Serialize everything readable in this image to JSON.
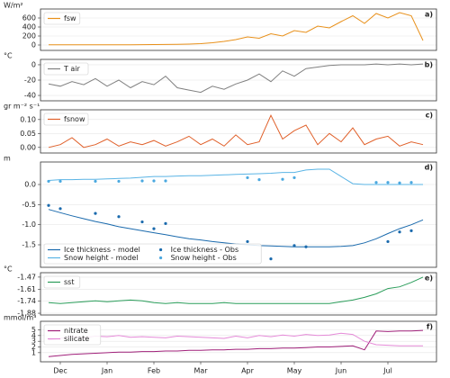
{
  "chart_data": [
    {
      "type": "line",
      "ylabel": "W/m²",
      "panel_label": "a)",
      "ylim": [
        -120,
        800
      ],
      "yticks": [
        0,
        200,
        400,
        600
      ],
      "grid": true,
      "legend": "upper left",
      "series": [
        {
          "name": "fsw",
          "color": "#e8901a",
          "values": [
            5,
            5,
            5,
            5,
            5,
            5,
            5,
            5,
            8,
            10,
            12,
            15,
            20,
            30,
            50,
            80,
            120,
            180,
            150,
            250,
            200,
            320,
            280,
            420,
            380,
            520,
            650,
            480,
            700,
            600,
            720,
            650,
            100
          ]
        }
      ]
    },
    {
      "type": "line",
      "ylabel": "°C",
      "panel_label": "b)",
      "ylim": [
        -47,
        7
      ],
      "yticks": [
        0,
        -20,
        -40
      ],
      "grid": true,
      "legend": "upper left",
      "series": [
        {
          "name": "T air",
          "color": "#808080",
          "values": [
            -25,
            -28,
            -22,
            -26,
            -18,
            -28,
            -20,
            -30,
            -22,
            -26,
            -15,
            -30,
            -33,
            -36,
            -28,
            -32,
            -25,
            -20,
            -12,
            -22,
            -8,
            -15,
            -5,
            -3,
            -1,
            0,
            0,
            0,
            1,
            0,
            1,
            0,
            1
          ]
        }
      ]
    },
    {
      "type": "line",
      "ylabel": "gr m⁻² s⁻¹",
      "panel_label": "c)",
      "ylim": [
        -0.02,
        0.135
      ],
      "yticks": [
        {
          "value": 0.1,
          "label": "0.10"
        },
        0.05,
        {
          "value": 0,
          "label": "0.00"
        }
      ],
      "grid": true,
      "legend": "upper left",
      "series": [
        {
          "name": "fsnow",
          "color": "#e0602a",
          "values": [
            0,
            0.01,
            0.035,
            0,
            0.01,
            0.03,
            0.005,
            0.02,
            0.01,
            0.025,
            0.005,
            0.02,
            0.04,
            0.01,
            0.03,
            0.005,
            0.045,
            0.01,
            0.02,
            0.115,
            0.03,
            0.06,
            0.08,
            0.01,
            0.05,
            0.02,
            0.07,
            0.01,
            0.03,
            0.04,
            0.005,
            0.02,
            0.01
          ]
        }
      ]
    },
    {
      "type": "line",
      "ylabel": "m",
      "panel_label": "d)",
      "ylim": [
        -2.06,
        0.56
      ],
      "yticks": [
        {
          "value": 0,
          "label": "0.0"
        },
        -0.5,
        {
          "value": -1,
          "label": "-1.0"
        },
        -1.5
      ],
      "grid": true,
      "legend": "lower left",
      "series": [
        {
          "name": "Ice thickness - model",
          "color": "#1a6aad",
          "values": [
            -0.62,
            -0.7,
            -0.78,
            -0.85,
            -0.92,
            -0.98,
            -1.05,
            -1.1,
            -1.15,
            -1.2,
            -1.25,
            -1.3,
            -1.35,
            -1.38,
            -1.42,
            -1.45,
            -1.48,
            -1.5,
            -1.52,
            -1.53,
            -1.54,
            -1.55,
            -1.55,
            -1.55,
            -1.55,
            -1.54,
            -1.52,
            -1.45,
            -1.35,
            -1.22,
            -1.1,
            -1.0,
            -0.88
          ]
        },
        {
          "name": "Snow height - model",
          "color": "#5ab4e5",
          "values": [
            0.1,
            0.12,
            0.12,
            0.13,
            0.13,
            0.14,
            0.15,
            0.16,
            0.18,
            0.2,
            0.2,
            0.21,
            0.22,
            0.22,
            0.23,
            0.24,
            0.25,
            0.26,
            0.27,
            0.28,
            0.3,
            0.3,
            0.36,
            0.38,
            0.38,
            0.2,
            0.02,
            0,
            0,
            0,
            0,
            0,
            0
          ]
        },
        {
          "name": "Ice thickness - Obs",
          "color": "#1a6aad",
          "marker": true,
          "values": [
            -0.52,
            -0.6,
            null,
            null,
            -0.72,
            null,
            -0.8,
            null,
            -0.93,
            -1.1,
            -0.97,
            null,
            null,
            null,
            null,
            null,
            null,
            -1.42,
            null,
            -1.85,
            null,
            -1.52,
            -1.55,
            null,
            null,
            null,
            null,
            null,
            null,
            -1.42,
            -1.18,
            -1.15,
            null
          ]
        },
        {
          "name": "Snow height - Obs",
          "color": "#4aa8e0",
          "marker": true,
          "values": [
            0.08,
            0.08,
            null,
            null,
            0.08,
            null,
            0.08,
            null,
            0.09,
            0.09,
            0.09,
            null,
            null,
            null,
            null,
            null,
            null,
            0.17,
            0.12,
            null,
            0.13,
            0.17,
            null,
            null,
            null,
            null,
            null,
            null,
            0.05,
            0.05,
            0.04,
            0.05,
            null
          ]
        }
      ]
    },
    {
      "type": "line",
      "ylabel": "°C",
      "panel_label": "e)",
      "ylim": [
        -1.9,
        -1.42
      ],
      "yticks": [
        -1.47,
        -1.61,
        -1.74,
        -1.88
      ],
      "grid": true,
      "legend": "upper left",
      "series": [
        {
          "name": "sst",
          "color": "#2a9d5a",
          "values": [
            -1.76,
            -1.77,
            -1.76,
            -1.75,
            -1.74,
            -1.75,
            -1.74,
            -1.73,
            -1.74,
            -1.76,
            -1.77,
            -1.76,
            -1.77,
            -1.77,
            -1.77,
            -1.76,
            -1.77,
            -1.77,
            -1.77,
            -1.77,
            -1.77,
            -1.77,
            -1.77,
            -1.77,
            -1.77,
            -1.75,
            -1.73,
            -1.7,
            -1.66,
            -1.6,
            -1.58,
            -1.53,
            -1.47
          ]
        }
      ]
    },
    {
      "type": "line",
      "ylabel": "mmol/m³",
      "panel_label": "f)",
      "ylim": [
        -0.6,
        6.5
      ],
      "yticks": [
        1,
        2,
        3,
        4,
        5
      ],
      "grid": true,
      "legend": "upper left",
      "categories": [
        null,
        "Dec",
        null,
        null,
        null,
        "Jan",
        null,
        null,
        null,
        "Feb",
        null,
        null,
        null,
        "Mar",
        null,
        null,
        null,
        "Apr",
        null,
        null,
        null,
        "May",
        null,
        null,
        null,
        "Jun",
        null,
        null,
        null,
        "Jul",
        null,
        null,
        null
      ],
      "series": [
        {
          "name": "nitrate",
          "color": "#a0207a",
          "values": [
            0.3,
            0.5,
            0.7,
            0.8,
            0.9,
            1.0,
            1.1,
            1.1,
            1.2,
            1.2,
            1.3,
            1.3,
            1.4,
            1.4,
            1.5,
            1.5,
            1.6,
            1.6,
            1.7,
            1.7,
            1.8,
            1.8,
            1.9,
            2.0,
            2.0,
            2.1,
            2.2,
            1.5,
            4.8,
            4.7,
            4.8,
            4.8,
            4.9
          ]
        },
        {
          "name": "silicate",
          "color": "#e58ad8",
          "values": [
            3.2,
            3.5,
            3.8,
            3.6,
            3.9,
            3.8,
            4.0,
            3.7,
            3.8,
            3.7,
            3.6,
            3.9,
            3.8,
            3.7,
            3.6,
            3.5,
            3.9,
            3.6,
            4.0,
            3.8,
            4.1,
            3.9,
            4.2,
            4.0,
            4.1,
            4.4,
            4.2,
            3.0,
            2.4,
            2.3,
            2.2,
            2.2,
            2.2
          ]
        }
      ]
    }
  ]
}
